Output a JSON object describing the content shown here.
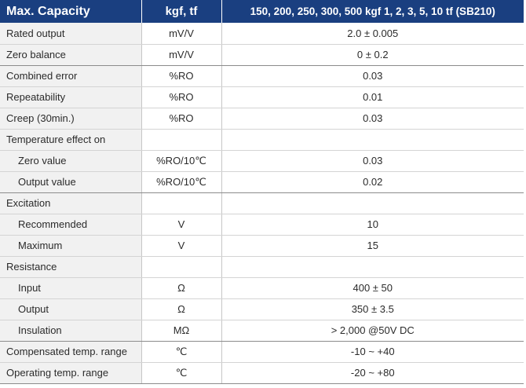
{
  "table": {
    "header": {
      "label": "Max. Capacity",
      "unit": "kgf, tf",
      "value": "150, 200, 250, 300, 500 kgf  1, 2, 3, 5, 10 tf (SB210)"
    },
    "rows": [
      {
        "label": "Rated output",
        "unit": "mV/V",
        "value": "2.0 ± 0.005",
        "indent": false,
        "group_end": false
      },
      {
        "label": "Zero balance",
        "unit": "mV/V",
        "value": "0 ± 0.2",
        "indent": false,
        "group_end": true
      },
      {
        "label": "Combined error",
        "unit": "%RO",
        "value": "0.03",
        "indent": false,
        "group_end": false
      },
      {
        "label": "Repeatability",
        "unit": "%RO",
        "value": "0.01",
        "indent": false,
        "group_end": false
      },
      {
        "label": "Creep (30min.)",
        "unit": "%RO",
        "value": "0.03",
        "indent": false,
        "group_end": false
      },
      {
        "label": "Temperature effect on",
        "unit": "",
        "value": "",
        "indent": false,
        "group_end": false
      },
      {
        "label": "Zero value",
        "unit": "%RO/10℃",
        "value": "0.03",
        "indent": true,
        "group_end": false
      },
      {
        "label": "Output  value",
        "unit": "%RO/10℃",
        "value": "0.02",
        "indent": true,
        "group_end": true
      },
      {
        "label": "Excitation",
        "unit": "",
        "value": "",
        "indent": false,
        "group_end": false
      },
      {
        "label": "Recommended",
        "unit": "V",
        "value": "10",
        "indent": true,
        "group_end": false
      },
      {
        "label": "Maximum",
        "unit": "V",
        "value": "15",
        "indent": true,
        "group_end": false
      },
      {
        "label": "Resistance",
        "unit": "",
        "value": "",
        "indent": false,
        "group_end": false
      },
      {
        "label": "Input",
        "unit": "Ω",
        "value": "400 ± 50",
        "indent": true,
        "group_end": false
      },
      {
        "label": "Output",
        "unit": "Ω",
        "value": "350 ± 3.5",
        "indent": true,
        "group_end": false
      },
      {
        "label": "Insulation",
        "unit": "MΩ",
        "value": "> 2,000 @50V DC",
        "indent": true,
        "group_end": true
      },
      {
        "label": "Compensated temp. range",
        "unit": "℃",
        "value": "-10 ~ +40",
        "indent": false,
        "group_end": false
      },
      {
        "label": "Operating temp. range",
        "unit": "℃",
        "value": "-20 ~ +80",
        "indent": false,
        "group_end": false
      }
    ]
  }
}
